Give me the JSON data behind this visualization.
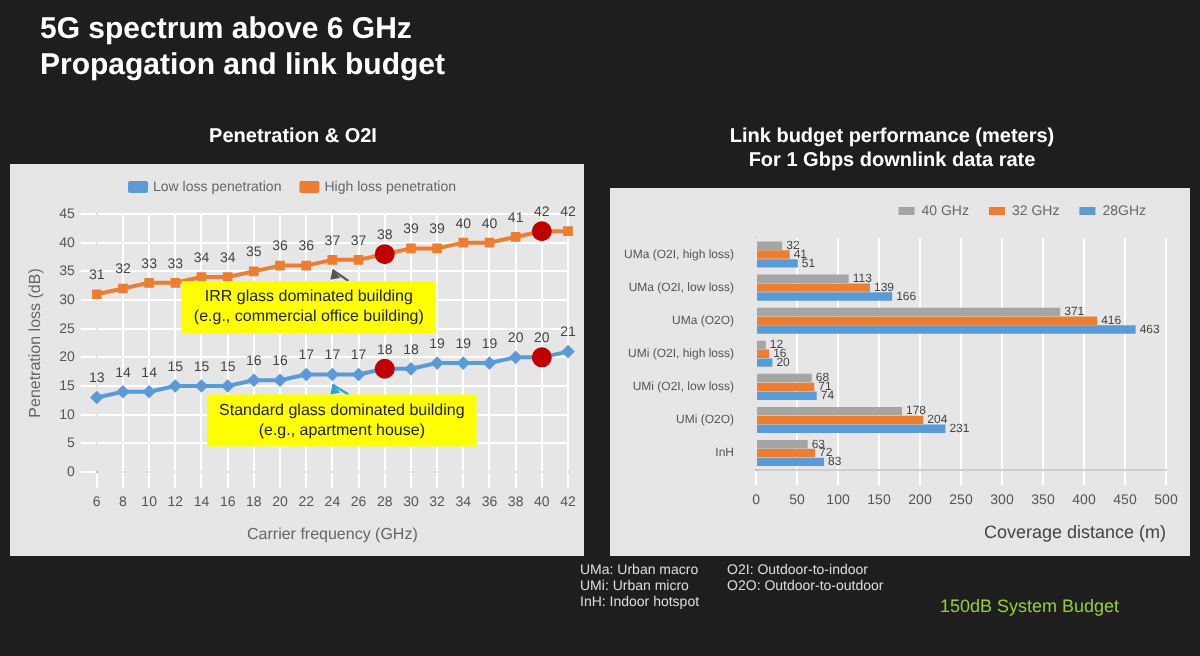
{
  "chart_data": [
    {
      "type": "other",
      "title": "5G spectrum above 6 GHz\nPropagation and link budget",
      "annotations": [
        "UMa: Urban macro",
        "UMi: Urban micro",
        "InH: Indoor hotspot",
        "O2I: Outdoor-to-indoor",
        "O2O: Outdoor-to-outdoor",
        "150dB System Budget"
      ]
    },
    {
      "type": "line",
      "title": "Penetration & O2I",
      "xlabel": "Carrier frequency (GHz)",
      "ylabel": "Penetration loss (dB)",
      "categories": [
        "6",
        "8",
        "10",
        "12",
        "14",
        "16",
        "18",
        "20",
        "22",
        "24",
        "26",
        "28",
        "30",
        "32",
        "34",
        "36",
        "38",
        "40",
        "42"
      ],
      "series": [
        {
          "name": "Low loss penetration",
          "color": "#5b9bd5",
          "marker": "diamond",
          "values": [
            13,
            14,
            14,
            15,
            15,
            15,
            16,
            16,
            17,
            17,
            17,
            18,
            18,
            19,
            19,
            19,
            20,
            20,
            21
          ],
          "value_labels": [
            "13",
            "14",
            "14",
            "15",
            "15",
            "15",
            "16",
            "16",
            "17",
            "17",
            "17",
            "18",
            "18",
            "19",
            "19",
            "19",
            "20",
            "20",
            "21"
          ]
        },
        {
          "name": "High loss penetration",
          "color": "#ed7d31",
          "marker": "square",
          "values": [
            31,
            32,
            33,
            33,
            34,
            34,
            35,
            36,
            36,
            37,
            37,
            38,
            39,
            39,
            40,
            40,
            41,
            42,
            42
          ],
          "value_labels": [
            "31",
            "32",
            "33",
            "33",
            "34",
            "34",
            "35",
            "36",
            "36",
            "37",
            "37",
            "38",
            "39",
            "39",
            "40",
            "40",
            "41",
            "42",
            "42"
          ]
        },
        {
          "type": "scatter",
          "color": "#c00000",
          "marker": "circle",
          "x": [
            "28",
            "28",
            "40",
            "40"
          ],
          "values": [
            18,
            38,
            20,
            42
          ]
        }
      ],
      "ylim": [
        0,
        45
      ],
      "yticks": [
        0,
        5,
        10,
        15,
        20,
        25,
        30,
        35,
        40,
        45
      ],
      "grid": true,
      "legend": "top",
      "annotations": [
        "IRR glass dominated building\n(e.g., commercial office building)",
        "Standard glass dominated building\n(e.g., apartment house)"
      ]
    },
    {
      "type": "bar",
      "orientation": "horizontal",
      "title": "Link budget performance (meters)\nFor 1 Gbps downlink data rate",
      "xlabel": "Coverage distance (m)",
      "categories": [
        "UMa (O2I, high loss)",
        "UMa (O2I, low loss)",
        "UMa (O2O)",
        "UMi (O2I, high loss)",
        "UMi (O2I, low loss)",
        "UMi (O2O)",
        "InH"
      ],
      "series": [
        {
          "name": "40 GHz",
          "color": "#a5a5a5",
          "values": [
            32,
            113,
            371,
            12,
            68,
            178,
            63
          ]
        },
        {
          "name": "32 GHz",
          "color": "#ed7d31",
          "values": [
            41,
            139,
            416,
            16,
            71,
            204,
            72
          ]
        },
        {
          "name": "28GHz",
          "color": "#5b9bd5",
          "values": [
            51,
            166,
            463,
            20,
            74,
            231,
            83
          ]
        }
      ],
      "xlim": [
        0,
        500
      ],
      "xticks": [
        0,
        50,
        100,
        150,
        200,
        250,
        300,
        350,
        400,
        450,
        500
      ],
      "grid": true,
      "legend": "top right",
      "data_labels": true
    }
  ]
}
